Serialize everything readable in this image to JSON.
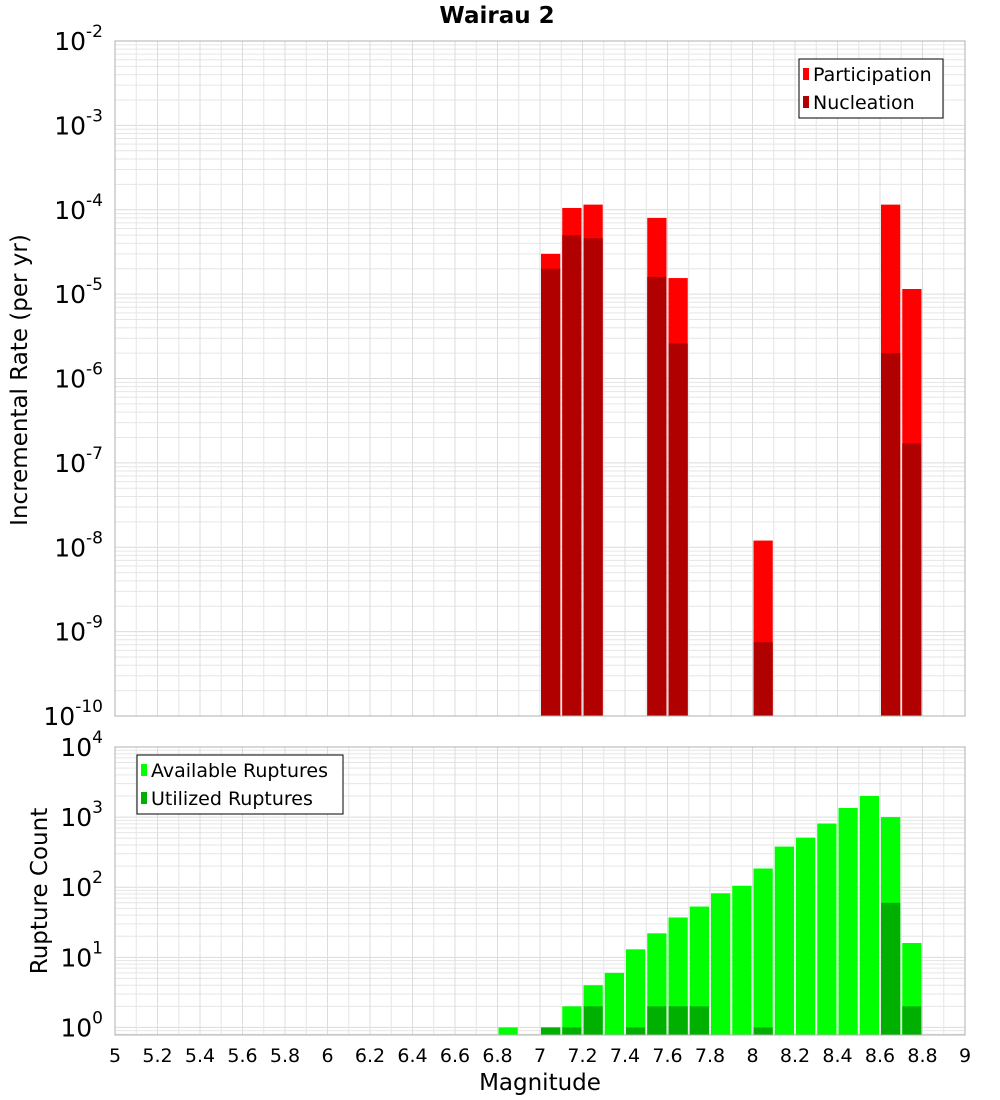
{
  "chart_data": {
    "title": "Wairau 2",
    "xlabel": "Magnitude",
    "bin_width": 0.1,
    "xlim": [
      5,
      9
    ],
    "x_ticks": [
      "5",
      "5.2",
      "5.4",
      "5.6",
      "5.8",
      "6",
      "6.2",
      "6.4",
      "6.6",
      "6.8",
      "7",
      "7.2",
      "7.4",
      "7.6",
      "7.8",
      "8",
      "8.2",
      "8.4",
      "8.6",
      "8.8",
      "9"
    ],
    "panels": [
      {
        "type": "bar",
        "ylabel": "Incremental Rate (per yr)",
        "y_scale": "log",
        "ylim": [
          1e-10,
          0.01
        ],
        "y_ticks": [
          {
            "base": "10",
            "exp": "-10"
          },
          {
            "base": "10",
            "exp": "-9"
          },
          {
            "base": "10",
            "exp": "-8"
          },
          {
            "base": "10",
            "exp": "-7"
          },
          {
            "base": "10",
            "exp": "-6"
          },
          {
            "base": "10",
            "exp": "-5"
          },
          {
            "base": "10",
            "exp": "-4"
          },
          {
            "base": "10",
            "exp": "-3"
          },
          {
            "base": "10",
            "exp": "-2"
          }
        ],
        "legend_position": "top-right",
        "series": [
          {
            "name": "Participation",
            "color": "#ff0000",
            "points": [
              {
                "x": 7.05,
                "y": 3e-05
              },
              {
                "x": 7.15,
                "y": 0.000105
              },
              {
                "x": 7.25,
                "y": 0.000115
              },
              {
                "x": 7.55,
                "y": 8e-05
              },
              {
                "x": 7.65,
                "y": 1.55e-05
              },
              {
                "x": 8.05,
                "y": 1.2e-08
              },
              {
                "x": 8.65,
                "y": 0.000115
              },
              {
                "x": 8.75,
                "y": 1.15e-05
              }
            ]
          },
          {
            "name": "Nucleation",
            "color": "#b00000",
            "points": [
              {
                "x": 7.05,
                "y": 2e-05
              },
              {
                "x": 7.15,
                "y": 5e-05
              },
              {
                "x": 7.25,
                "y": 4.6e-05
              },
              {
                "x": 7.55,
                "y": 1.6e-05
              },
              {
                "x": 7.65,
                "y": 2.6e-06
              },
              {
                "x": 8.05,
                "y": 7.5e-10
              },
              {
                "x": 8.65,
                "y": 2e-06
              },
              {
                "x": 8.75,
                "y": 1.7e-07
              }
            ]
          }
        ]
      },
      {
        "type": "bar",
        "ylabel": "Rupture Count",
        "y_scale": "log",
        "ylim": [
          0.78,
          10000
        ],
        "y_ticks": [
          {
            "base": "10",
            "exp": "0"
          },
          {
            "base": "10",
            "exp": "1"
          },
          {
            "base": "10",
            "exp": "2"
          },
          {
            "base": "10",
            "exp": "3"
          },
          {
            "base": "10",
            "exp": "4"
          }
        ],
        "legend_position": "top-left",
        "series": [
          {
            "name": "Available Ruptures",
            "color": "#00ff00",
            "points": [
              {
                "x": 6.85,
                "y": 1
              },
              {
                "x": 7.05,
                "y": 1
              },
              {
                "x": 7.15,
                "y": 2
              },
              {
                "x": 7.25,
                "y": 4
              },
              {
                "x": 7.35,
                "y": 6
              },
              {
                "x": 7.45,
                "y": 13
              },
              {
                "x": 7.55,
                "y": 22
              },
              {
                "x": 7.65,
                "y": 37
              },
              {
                "x": 7.75,
                "y": 53
              },
              {
                "x": 7.85,
                "y": 82
              },
              {
                "x": 7.95,
                "y": 105
              },
              {
                "x": 8.05,
                "y": 185
              },
              {
                "x": 8.15,
                "y": 380
              },
              {
                "x": 8.25,
                "y": 510
              },
              {
                "x": 8.35,
                "y": 810
              },
              {
                "x": 8.45,
                "y": 1350
              },
              {
                "x": 8.55,
                "y": 2000
              },
              {
                "x": 8.65,
                "y": 1000
              },
              {
                "x": 8.75,
                "y": 16
              }
            ]
          },
          {
            "name": "Utilized Ruptures",
            "color": "#00b000",
            "points": [
              {
                "x": 7.05,
                "y": 1
              },
              {
                "x": 7.15,
                "y": 1
              },
              {
                "x": 7.25,
                "y": 2
              },
              {
                "x": 7.45,
                "y": 1
              },
              {
                "x": 7.55,
                "y": 2
              },
              {
                "x": 7.65,
                "y": 2
              },
              {
                "x": 7.75,
                "y": 2
              },
              {
                "x": 8.05,
                "y": 1
              },
              {
                "x": 8.65,
                "y": 60
              },
              {
                "x": 8.75,
                "y": 2
              }
            ]
          }
        ]
      }
    ]
  }
}
